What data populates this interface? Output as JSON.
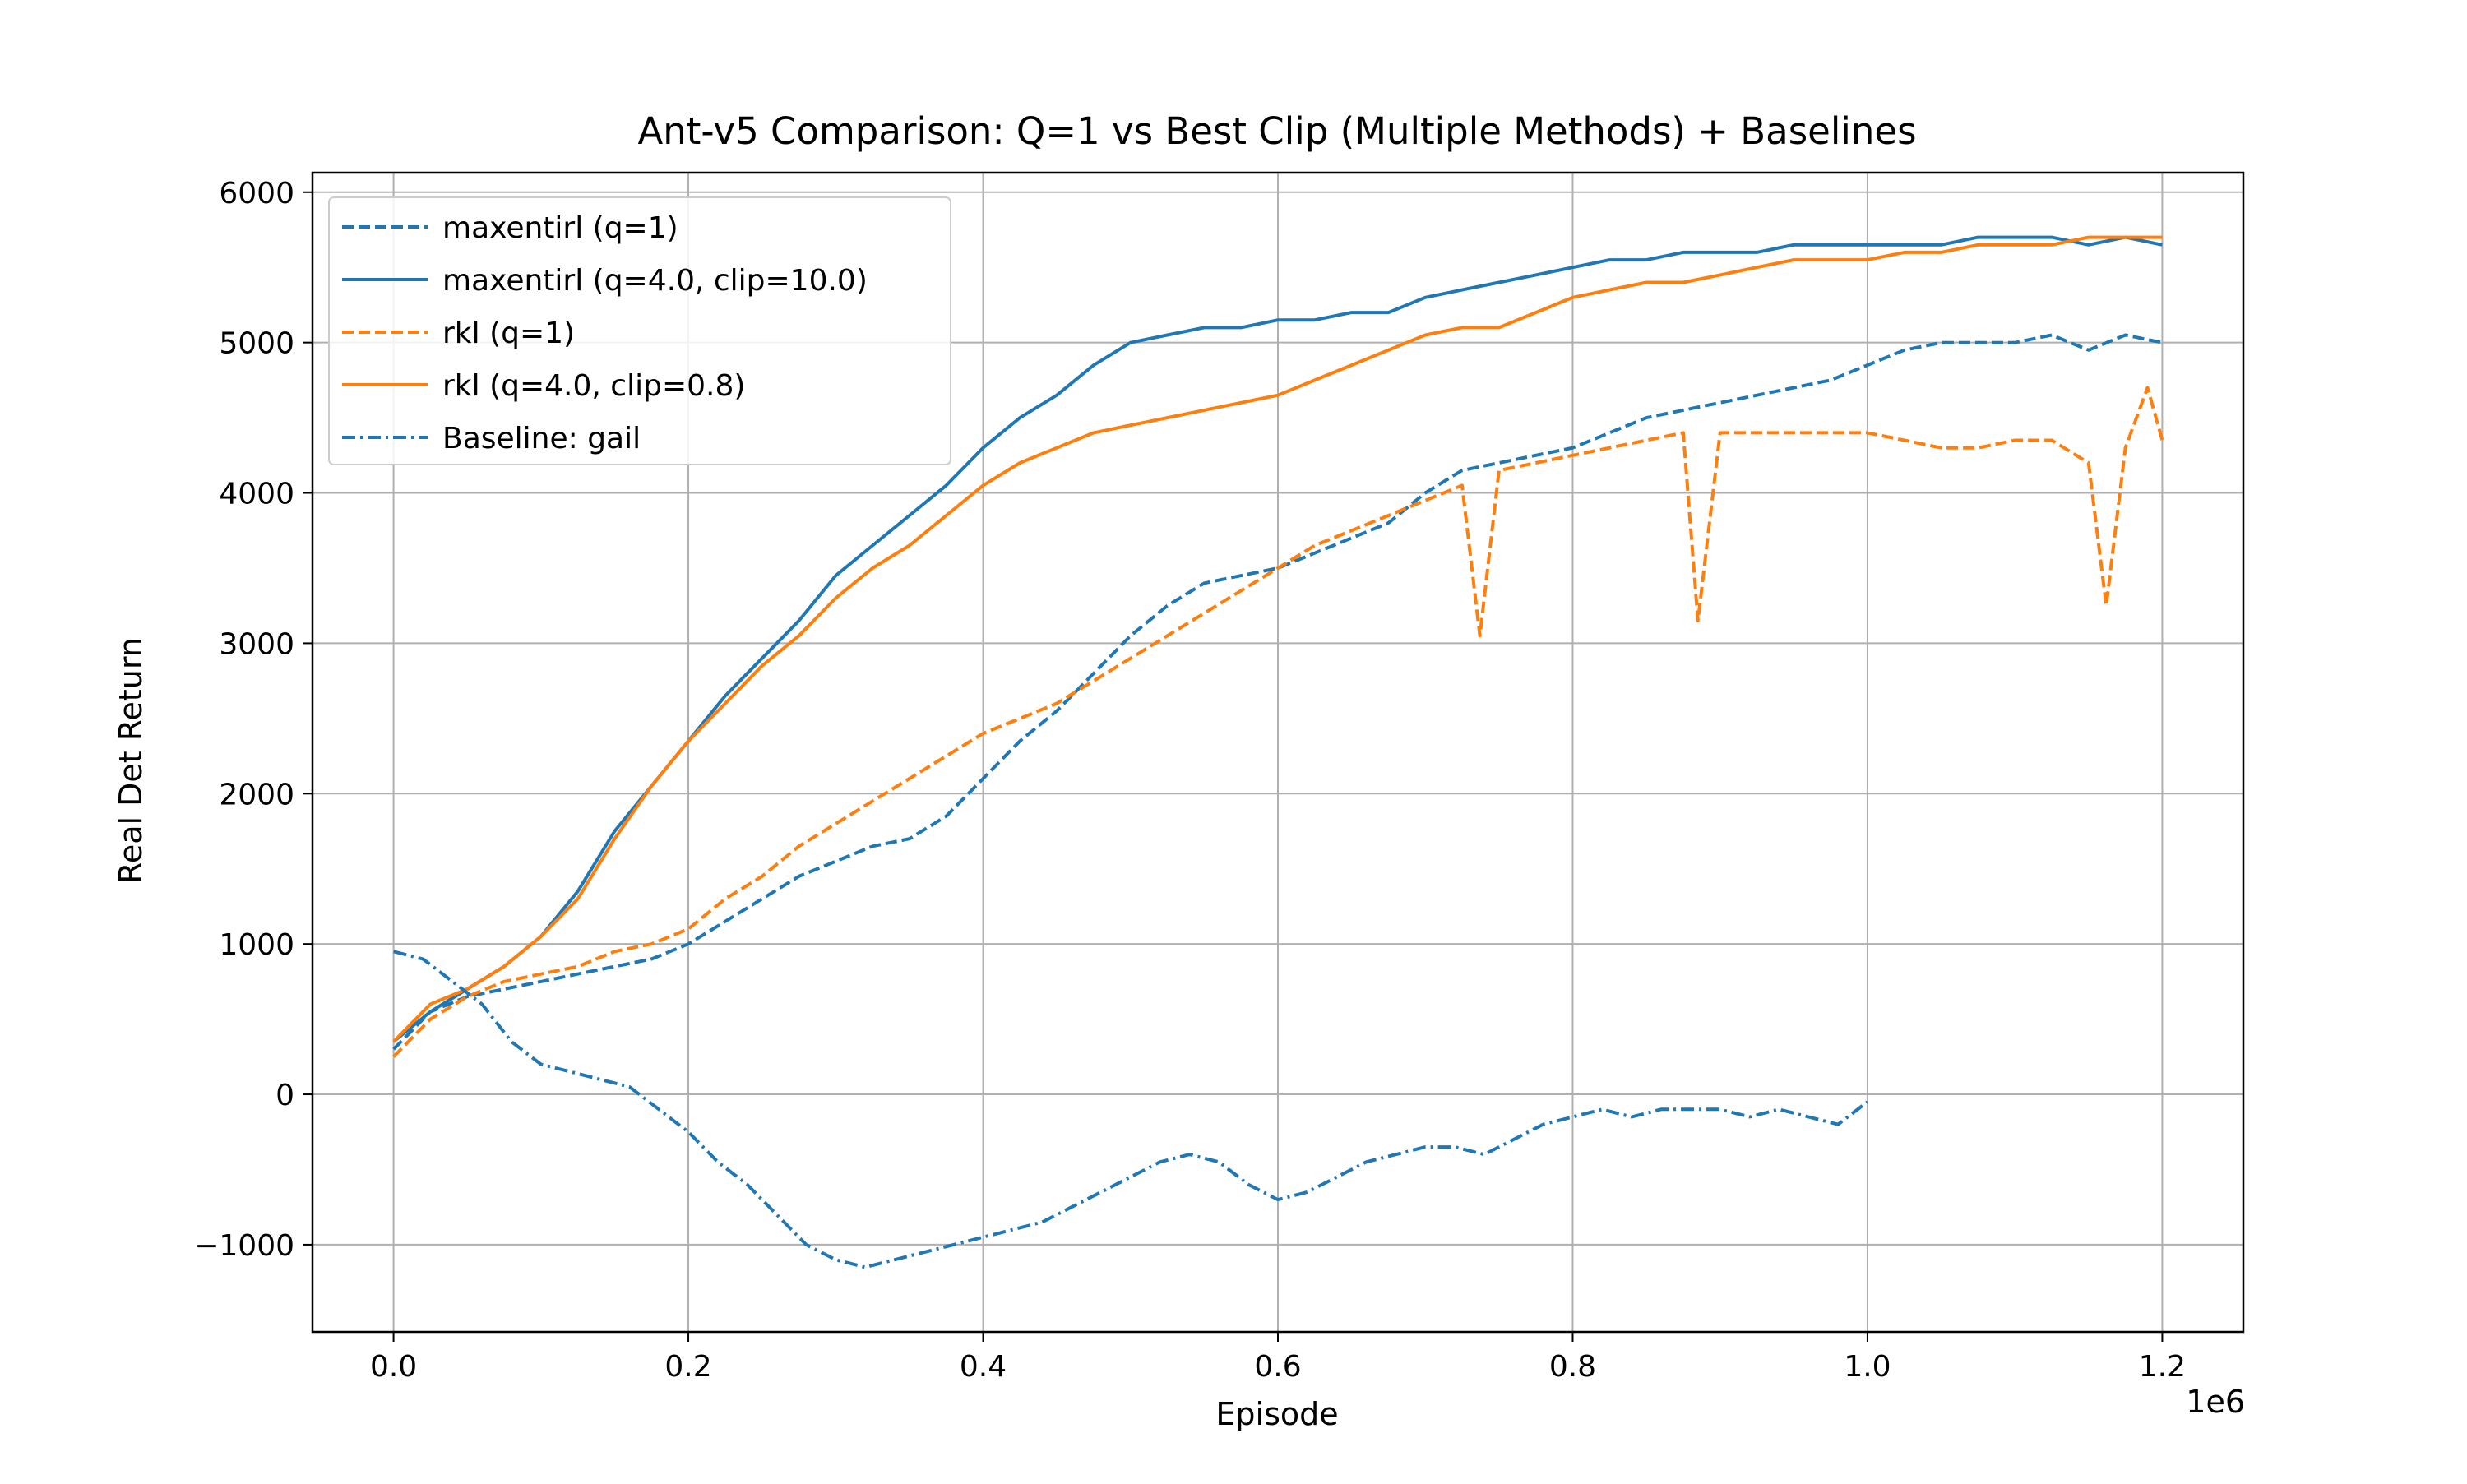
{
  "chart_data": {
    "type": "line",
    "title": "Ant-v5 Comparison: Q=1 vs Best Clip (Multiple Methods) + Baselines",
    "xlabel": "Episode",
    "ylabel": "Real Det Return",
    "x_offset_label": "1e6",
    "xlim": [
      -55000,
      1255000
    ],
    "ylim": [
      -1580,
      6130
    ],
    "x_ticks": [
      0,
      200000,
      400000,
      600000,
      800000,
      1000000,
      1200000
    ],
    "x_tick_labels": [
      "0.0",
      "0.2",
      "0.4",
      "0.6",
      "0.8",
      "1.0",
      "1.2"
    ],
    "y_ticks": [
      -1000,
      0,
      1000,
      2000,
      3000,
      4000,
      5000,
      6000
    ],
    "y_tick_labels": [
      "−1000",
      "0",
      "1000",
      "2000",
      "3000",
      "4000",
      "5000",
      "6000"
    ],
    "grid": true,
    "legend_position": "top-left",
    "colors": {
      "blue": "#1f77b4",
      "orange": "#ff7f0e"
    },
    "series": [
      {
        "name": "maxentirl (q=1)",
        "color": "#1f77b4",
        "style": "dashed",
        "points": [
          [
            0,
            300
          ],
          [
            25000,
            550
          ],
          [
            50000,
            650
          ],
          [
            75000,
            700
          ],
          [
            100000,
            750
          ],
          [
            125000,
            800
          ],
          [
            150000,
            850
          ],
          [
            175000,
            900
          ],
          [
            200000,
            1000
          ],
          [
            225000,
            1150
          ],
          [
            250000,
            1300
          ],
          [
            275000,
            1450
          ],
          [
            300000,
            1550
          ],
          [
            325000,
            1650
          ],
          [
            350000,
            1700
          ],
          [
            375000,
            1850
          ],
          [
            400000,
            2100
          ],
          [
            425000,
            2350
          ],
          [
            450000,
            2550
          ],
          [
            475000,
            2800
          ],
          [
            500000,
            3050
          ],
          [
            525000,
            3250
          ],
          [
            550000,
            3400
          ],
          [
            575000,
            3450
          ],
          [
            600000,
            3500
          ],
          [
            625000,
            3600
          ],
          [
            650000,
            3700
          ],
          [
            675000,
            3800
          ],
          [
            700000,
            4000
          ],
          [
            725000,
            4150
          ],
          [
            750000,
            4200
          ],
          [
            775000,
            4250
          ],
          [
            800000,
            4300
          ],
          [
            825000,
            4400
          ],
          [
            850000,
            4500
          ],
          [
            875000,
            4550
          ],
          [
            900000,
            4600
          ],
          [
            925000,
            4650
          ],
          [
            950000,
            4700
          ],
          [
            975000,
            4750
          ],
          [
            1000000,
            4850
          ],
          [
            1025000,
            4950
          ],
          [
            1050000,
            5000
          ],
          [
            1075000,
            5000
          ],
          [
            1100000,
            5000
          ],
          [
            1125000,
            5050
          ],
          [
            1150000,
            4950
          ],
          [
            1175000,
            5050
          ],
          [
            1200000,
            5000
          ]
        ]
      },
      {
        "name": "maxentirl (q=4.0, clip=10.0)",
        "color": "#1f77b4",
        "style": "solid",
        "points": [
          [
            0,
            350
          ],
          [
            25000,
            550
          ],
          [
            50000,
            700
          ],
          [
            75000,
            850
          ],
          [
            100000,
            1050
          ],
          [
            125000,
            1350
          ],
          [
            150000,
            1750
          ],
          [
            175000,
            2050
          ],
          [
            200000,
            2350
          ],
          [
            225000,
            2650
          ],
          [
            250000,
            2900
          ],
          [
            275000,
            3150
          ],
          [
            300000,
            3450
          ],
          [
            325000,
            3650
          ],
          [
            350000,
            3850
          ],
          [
            375000,
            4050
          ],
          [
            400000,
            4300
          ],
          [
            425000,
            4500
          ],
          [
            450000,
            4650
          ],
          [
            475000,
            4850
          ],
          [
            500000,
            5000
          ],
          [
            525000,
            5050
          ],
          [
            550000,
            5100
          ],
          [
            575000,
            5100
          ],
          [
            600000,
            5150
          ],
          [
            625000,
            5150
          ],
          [
            650000,
            5200
          ],
          [
            675000,
            5200
          ],
          [
            700000,
            5300
          ],
          [
            725000,
            5350
          ],
          [
            750000,
            5400
          ],
          [
            775000,
            5450
          ],
          [
            800000,
            5500
          ],
          [
            825000,
            5550
          ],
          [
            850000,
            5550
          ],
          [
            875000,
            5600
          ],
          [
            900000,
            5600
          ],
          [
            925000,
            5600
          ],
          [
            950000,
            5650
          ],
          [
            975000,
            5650
          ],
          [
            1000000,
            5650
          ],
          [
            1025000,
            5650
          ],
          [
            1050000,
            5650
          ],
          [
            1075000,
            5700
          ],
          [
            1100000,
            5700
          ],
          [
            1125000,
            5700
          ],
          [
            1150000,
            5650
          ],
          [
            1175000,
            5700
          ],
          [
            1200000,
            5650
          ]
        ]
      },
      {
        "name": "rkl (q=1)",
        "color": "#ff7f0e",
        "style": "dashed",
        "points": [
          [
            0,
            250
          ],
          [
            25000,
            500
          ],
          [
            50000,
            650
          ],
          [
            75000,
            750
          ],
          [
            100000,
            800
          ],
          [
            125000,
            850
          ],
          [
            150000,
            950
          ],
          [
            175000,
            1000
          ],
          [
            200000,
            1100
          ],
          [
            225000,
            1300
          ],
          [
            250000,
            1450
          ],
          [
            275000,
            1650
          ],
          [
            300000,
            1800
          ],
          [
            325000,
            1950
          ],
          [
            350000,
            2100
          ],
          [
            375000,
            2250
          ],
          [
            400000,
            2400
          ],
          [
            425000,
            2500
          ],
          [
            450000,
            2600
          ],
          [
            475000,
            2750
          ],
          [
            500000,
            2900
          ],
          [
            525000,
            3050
          ],
          [
            550000,
            3200
          ],
          [
            575000,
            3350
          ],
          [
            600000,
            3500
          ],
          [
            625000,
            3650
          ],
          [
            650000,
            3750
          ],
          [
            675000,
            3850
          ],
          [
            700000,
            3950
          ],
          [
            725000,
            4050
          ],
          [
            737000,
            3050
          ],
          [
            750000,
            4150
          ],
          [
            775000,
            4200
          ],
          [
            800000,
            4250
          ],
          [
            825000,
            4300
          ],
          [
            850000,
            4350
          ],
          [
            875000,
            4400
          ],
          [
            885000,
            3150
          ],
          [
            900000,
            4400
          ],
          [
            925000,
            4400
          ],
          [
            950000,
            4400
          ],
          [
            975000,
            4400
          ],
          [
            1000000,
            4400
          ],
          [
            1025000,
            4350
          ],
          [
            1050000,
            4300
          ],
          [
            1075000,
            4300
          ],
          [
            1100000,
            4350
          ],
          [
            1125000,
            4350
          ],
          [
            1150000,
            4200
          ],
          [
            1162000,
            3250
          ],
          [
            1175000,
            4300
          ],
          [
            1190000,
            4700
          ],
          [
            1200000,
            4350
          ]
        ]
      },
      {
        "name": "rkl (q=4.0, clip=0.8)",
        "color": "#ff7f0e",
        "style": "solid",
        "points": [
          [
            0,
            350
          ],
          [
            25000,
            600
          ],
          [
            50000,
            700
          ],
          [
            75000,
            850
          ],
          [
            100000,
            1050
          ],
          [
            125000,
            1300
          ],
          [
            150000,
            1700
          ],
          [
            175000,
            2050
          ],
          [
            200000,
            2350
          ],
          [
            225000,
            2600
          ],
          [
            250000,
            2850
          ],
          [
            275000,
            3050
          ],
          [
            300000,
            3300
          ],
          [
            325000,
            3500
          ],
          [
            350000,
            3650
          ],
          [
            375000,
            3850
          ],
          [
            400000,
            4050
          ],
          [
            425000,
            4200
          ],
          [
            450000,
            4300
          ],
          [
            475000,
            4400
          ],
          [
            500000,
            4450
          ],
          [
            525000,
            4500
          ],
          [
            550000,
            4550
          ],
          [
            575000,
            4600
          ],
          [
            600000,
            4650
          ],
          [
            625000,
            4750
          ],
          [
            650000,
            4850
          ],
          [
            675000,
            4950
          ],
          [
            700000,
            5050
          ],
          [
            725000,
            5100
          ],
          [
            750000,
            5100
          ],
          [
            775000,
            5200
          ],
          [
            800000,
            5300
          ],
          [
            825000,
            5350
          ],
          [
            850000,
            5400
          ],
          [
            875000,
            5400
          ],
          [
            900000,
            5450
          ],
          [
            925000,
            5500
          ],
          [
            950000,
            5550
          ],
          [
            975000,
            5550
          ],
          [
            1000000,
            5550
          ],
          [
            1025000,
            5600
          ],
          [
            1050000,
            5600
          ],
          [
            1075000,
            5650
          ],
          [
            1100000,
            5650
          ],
          [
            1125000,
            5650
          ],
          [
            1150000,
            5700
          ],
          [
            1175000,
            5700
          ],
          [
            1200000,
            5700
          ]
        ]
      },
      {
        "name": "Baseline: gail",
        "color": "#1f77b4",
        "style": "dashdot",
        "points": [
          [
            0,
            950
          ],
          [
            20000,
            900
          ],
          [
            40000,
            750
          ],
          [
            60000,
            600
          ],
          [
            80000,
            350
          ],
          [
            100000,
            200
          ],
          [
            120000,
            150
          ],
          [
            140000,
            100
          ],
          [
            160000,
            50
          ],
          [
            180000,
            -100
          ],
          [
            200000,
            -250
          ],
          [
            220000,
            -450
          ],
          [
            240000,
            -600
          ],
          [
            260000,
            -800
          ],
          [
            280000,
            -1000
          ],
          [
            300000,
            -1100
          ],
          [
            320000,
            -1150
          ],
          [
            340000,
            -1100
          ],
          [
            360000,
            -1050
          ],
          [
            380000,
            -1000
          ],
          [
            400000,
            -950
          ],
          [
            420000,
            -900
          ],
          [
            440000,
            -850
          ],
          [
            460000,
            -750
          ],
          [
            480000,
            -650
          ],
          [
            500000,
            -550
          ],
          [
            520000,
            -450
          ],
          [
            540000,
            -400
          ],
          [
            560000,
            -450
          ],
          [
            580000,
            -600
          ],
          [
            600000,
            -700
          ],
          [
            620000,
            -650
          ],
          [
            640000,
            -550
          ],
          [
            660000,
            -450
          ],
          [
            680000,
            -400
          ],
          [
            700000,
            -350
          ],
          [
            720000,
            -350
          ],
          [
            740000,
            -400
          ],
          [
            760000,
            -300
          ],
          [
            780000,
            -200
          ],
          [
            800000,
            -150
          ],
          [
            820000,
            -100
          ],
          [
            840000,
            -150
          ],
          [
            860000,
            -100
          ],
          [
            880000,
            -100
          ],
          [
            900000,
            -100
          ],
          [
            920000,
            -150
          ],
          [
            940000,
            -100
          ],
          [
            960000,
            -150
          ],
          [
            980000,
            -200
          ],
          [
            1000000,
            -50
          ]
        ]
      }
    ]
  }
}
